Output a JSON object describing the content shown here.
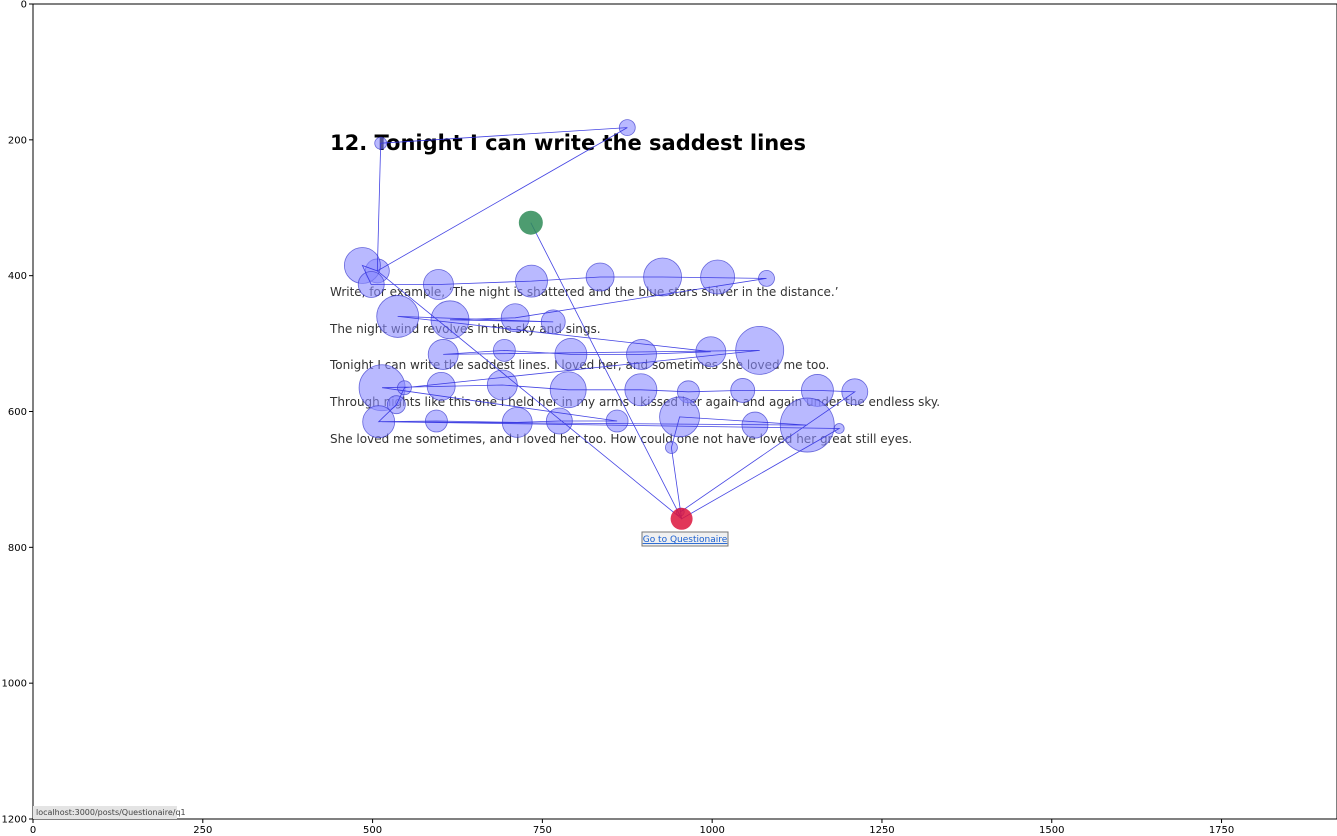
{
  "page": {
    "title": "12. Tonight I can write the saddest lines",
    "lines": [
      "Write, for example, ‘The night is shattered and the blue stars shiver in the distance.’",
      "The night wind revolves in the sky and sings.",
      "Tonight I can write the saddest lines. I loved her, and sometimes she loved me too.",
      "Through nights like this one I held her in my arms I kissed her again and again under the endless sky.",
      "She loved me sometimes, and I loved her too. How could one not have loved her great still eyes."
    ],
    "link_label": "Go to Questionaire",
    "status_url": "localhost:3000/posts/Questionaire/q1"
  },
  "chart_data": {
    "type": "scatter",
    "title": "",
    "xlabel": "",
    "ylabel": "",
    "xlim": [
      0,
      1920
    ],
    "ylim": [
      1200,
      0
    ],
    "xticks": [
      0,
      250,
      500,
      750,
      1000,
      1250,
      1500,
      1750
    ],
    "yticks": [
      0,
      200,
      400,
      600,
      800,
      1000,
      1200
    ],
    "grid": false,
    "colors": {
      "fixation": "#8a8aff",
      "fixation_stroke": "#3333cc",
      "path": "#3030e0",
      "start": "#2e8b57",
      "end": "#dc143c"
    },
    "start_point": {
      "x": 733,
      "y": 322
    },
    "end_point": {
      "x": 955,
      "y": 758
    },
    "fixations": [
      {
        "x": 875,
        "y": 182,
        "r": 8
      },
      {
        "x": 512,
        "y": 205,
        "r": 6
      },
      {
        "x": 507,
        "y": 393,
        "r": 12
      },
      {
        "x": 485,
        "y": 385,
        "r": 18
      },
      {
        "x": 498,
        "y": 413,
        "r": 13
      },
      {
        "x": 597,
        "y": 413,
        "r": 15
      },
      {
        "x": 734,
        "y": 408,
        "r": 16
      },
      {
        "x": 835,
        "y": 402,
        "r": 14
      },
      {
        "x": 927,
        "y": 402,
        "r": 19
      },
      {
        "x": 1008,
        "y": 402,
        "r": 17
      },
      {
        "x": 1080,
        "y": 404,
        "r": 8
      },
      {
        "x": 537,
        "y": 460,
        "r": 21
      },
      {
        "x": 614,
        "y": 465,
        "r": 19
      },
      {
        "x": 710,
        "y": 462,
        "r": 14
      },
      {
        "x": 766,
        "y": 468,
        "r": 12
      },
      {
        "x": 604,
        "y": 516,
        "r": 15
      },
      {
        "x": 694,
        "y": 510,
        "r": 11
      },
      {
        "x": 792,
        "y": 516,
        "r": 16
      },
      {
        "x": 896,
        "y": 516,
        "r": 15
      },
      {
        "x": 998,
        "y": 512,
        "r": 15
      },
      {
        "x": 1070,
        "y": 510,
        "r": 24
      },
      {
        "x": 514,
        "y": 565,
        "r": 23
      },
      {
        "x": 547,
        "y": 565,
        "r": 7
      },
      {
        "x": 601,
        "y": 563,
        "r": 14
      },
      {
        "x": 691,
        "y": 561,
        "r": 15
      },
      {
        "x": 788,
        "y": 568,
        "r": 18
      },
      {
        "x": 895,
        "y": 568,
        "r": 16
      },
      {
        "x": 965,
        "y": 571,
        "r": 11
      },
      {
        "x": 1045,
        "y": 569,
        "r": 12
      },
      {
        "x": 1155,
        "y": 569,
        "r": 16
      },
      {
        "x": 1210,
        "y": 571,
        "r": 13
      },
      {
        "x": 535,
        "y": 590,
        "r": 9
      },
      {
        "x": 509,
        "y": 615,
        "r": 16
      },
      {
        "x": 594,
        "y": 614,
        "r": 11
      },
      {
        "x": 713,
        "y": 616,
        "r": 15
      },
      {
        "x": 775,
        "y": 614,
        "r": 13
      },
      {
        "x": 860,
        "y": 614,
        "r": 11
      },
      {
        "x": 952,
        "y": 608,
        "r": 20
      },
      {
        "x": 1063,
        "y": 620,
        "r": 13
      },
      {
        "x": 1140,
        "y": 620,
        "r": 27
      },
      {
        "x": 1187,
        "y": 625,
        "r": 5
      },
      {
        "x": 940,
        "y": 653,
        "r": 6
      },
      {
        "x": 953,
        "y": 748,
        "r": 4
      }
    ],
    "scanpath": [
      [
        733,
        322
      ],
      [
        955,
        758
      ],
      [
        1187,
        625
      ],
      [
        509,
        615
      ],
      [
        535,
        590
      ],
      [
        547,
        565
      ],
      [
        1070,
        510
      ],
      [
        604,
        516
      ],
      [
        694,
        510
      ],
      [
        792,
        516
      ],
      [
        896,
        516
      ],
      [
        998,
        512
      ],
      [
        537,
        460
      ],
      [
        766,
        468
      ],
      [
        614,
        465
      ],
      [
        710,
        462
      ],
      [
        1080,
        404
      ],
      [
        927,
        402
      ],
      [
        835,
        402
      ],
      [
        734,
        408
      ],
      [
        597,
        413
      ],
      [
        498,
        413
      ],
      [
        485,
        385
      ],
      [
        507,
        393
      ],
      [
        512,
        205
      ],
      [
        875,
        182
      ],
      [
        507,
        393
      ],
      [
        955,
        758
      ],
      [
        940,
        653
      ],
      [
        952,
        608
      ],
      [
        1140,
        620
      ],
      [
        509,
        615
      ],
      [
        594,
        614
      ],
      [
        713,
        616
      ],
      [
        775,
        614
      ],
      [
        860,
        614
      ],
      [
        514,
        565
      ],
      [
        601,
        563
      ],
      [
        691,
        561
      ],
      [
        788,
        568
      ],
      [
        895,
        568
      ],
      [
        965,
        571
      ],
      [
        1045,
        569
      ],
      [
        1155,
        569
      ],
      [
        1210,
        571
      ],
      [
        953,
        748
      ]
    ]
  }
}
